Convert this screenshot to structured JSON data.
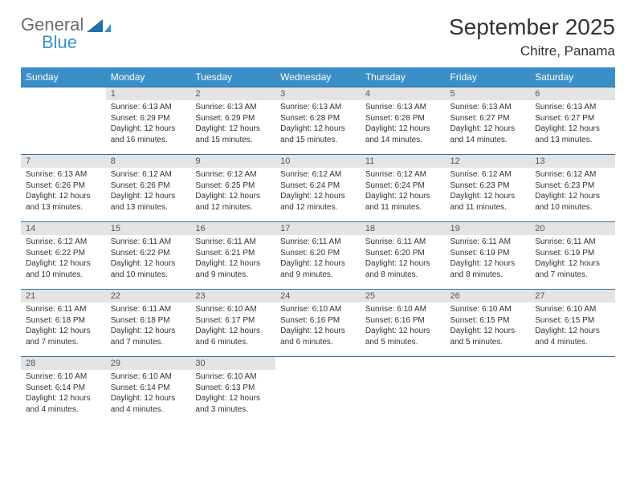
{
  "brand": {
    "word1": "General",
    "word2": "Blue"
  },
  "title": "September 2025",
  "location": "Chitre, Panama",
  "colors": {
    "header_bg": "#3b8fc9",
    "header_text": "#ffffff",
    "daynum_bg": "#e4e4e4",
    "row_border": "#2a6fa0",
    "logo_gray": "#6a6a6a",
    "logo_blue": "#3b8fc9"
  },
  "weekdays": [
    "Sunday",
    "Monday",
    "Tuesday",
    "Wednesday",
    "Thursday",
    "Friday",
    "Saturday"
  ],
  "start_offset": 1,
  "days": [
    {
      "n": "1",
      "sr": "Sunrise: 6:13 AM",
      "ss": "Sunset: 6:29 PM",
      "d1": "Daylight: 12 hours",
      "d2": "and 16 minutes."
    },
    {
      "n": "2",
      "sr": "Sunrise: 6:13 AM",
      "ss": "Sunset: 6:29 PM",
      "d1": "Daylight: 12 hours",
      "d2": "and 15 minutes."
    },
    {
      "n": "3",
      "sr": "Sunrise: 6:13 AM",
      "ss": "Sunset: 6:28 PM",
      "d1": "Daylight: 12 hours",
      "d2": "and 15 minutes."
    },
    {
      "n": "4",
      "sr": "Sunrise: 6:13 AM",
      "ss": "Sunset: 6:28 PM",
      "d1": "Daylight: 12 hours",
      "d2": "and 14 minutes."
    },
    {
      "n": "5",
      "sr": "Sunrise: 6:13 AM",
      "ss": "Sunset: 6:27 PM",
      "d1": "Daylight: 12 hours",
      "d2": "and 14 minutes."
    },
    {
      "n": "6",
      "sr": "Sunrise: 6:13 AM",
      "ss": "Sunset: 6:27 PM",
      "d1": "Daylight: 12 hours",
      "d2": "and 13 minutes."
    },
    {
      "n": "7",
      "sr": "Sunrise: 6:13 AM",
      "ss": "Sunset: 6:26 PM",
      "d1": "Daylight: 12 hours",
      "d2": "and 13 minutes."
    },
    {
      "n": "8",
      "sr": "Sunrise: 6:12 AM",
      "ss": "Sunset: 6:26 PM",
      "d1": "Daylight: 12 hours",
      "d2": "and 13 minutes."
    },
    {
      "n": "9",
      "sr": "Sunrise: 6:12 AM",
      "ss": "Sunset: 6:25 PM",
      "d1": "Daylight: 12 hours",
      "d2": "and 12 minutes."
    },
    {
      "n": "10",
      "sr": "Sunrise: 6:12 AM",
      "ss": "Sunset: 6:24 PM",
      "d1": "Daylight: 12 hours",
      "d2": "and 12 minutes."
    },
    {
      "n": "11",
      "sr": "Sunrise: 6:12 AM",
      "ss": "Sunset: 6:24 PM",
      "d1": "Daylight: 12 hours",
      "d2": "and 11 minutes."
    },
    {
      "n": "12",
      "sr": "Sunrise: 6:12 AM",
      "ss": "Sunset: 6:23 PM",
      "d1": "Daylight: 12 hours",
      "d2": "and 11 minutes."
    },
    {
      "n": "13",
      "sr": "Sunrise: 6:12 AM",
      "ss": "Sunset: 6:23 PM",
      "d1": "Daylight: 12 hours",
      "d2": "and 10 minutes."
    },
    {
      "n": "14",
      "sr": "Sunrise: 6:12 AM",
      "ss": "Sunset: 6:22 PM",
      "d1": "Daylight: 12 hours",
      "d2": "and 10 minutes."
    },
    {
      "n": "15",
      "sr": "Sunrise: 6:11 AM",
      "ss": "Sunset: 6:22 PM",
      "d1": "Daylight: 12 hours",
      "d2": "and 10 minutes."
    },
    {
      "n": "16",
      "sr": "Sunrise: 6:11 AM",
      "ss": "Sunset: 6:21 PM",
      "d1": "Daylight: 12 hours",
      "d2": "and 9 minutes."
    },
    {
      "n": "17",
      "sr": "Sunrise: 6:11 AM",
      "ss": "Sunset: 6:20 PM",
      "d1": "Daylight: 12 hours",
      "d2": "and 9 minutes."
    },
    {
      "n": "18",
      "sr": "Sunrise: 6:11 AM",
      "ss": "Sunset: 6:20 PM",
      "d1": "Daylight: 12 hours",
      "d2": "and 8 minutes."
    },
    {
      "n": "19",
      "sr": "Sunrise: 6:11 AM",
      "ss": "Sunset: 6:19 PM",
      "d1": "Daylight: 12 hours",
      "d2": "and 8 minutes."
    },
    {
      "n": "20",
      "sr": "Sunrise: 6:11 AM",
      "ss": "Sunset: 6:19 PM",
      "d1": "Daylight: 12 hours",
      "d2": "and 7 minutes."
    },
    {
      "n": "21",
      "sr": "Sunrise: 6:11 AM",
      "ss": "Sunset: 6:18 PM",
      "d1": "Daylight: 12 hours",
      "d2": "and 7 minutes."
    },
    {
      "n": "22",
      "sr": "Sunrise: 6:11 AM",
      "ss": "Sunset: 6:18 PM",
      "d1": "Daylight: 12 hours",
      "d2": "and 7 minutes."
    },
    {
      "n": "23",
      "sr": "Sunrise: 6:10 AM",
      "ss": "Sunset: 6:17 PM",
      "d1": "Daylight: 12 hours",
      "d2": "and 6 minutes."
    },
    {
      "n": "24",
      "sr": "Sunrise: 6:10 AM",
      "ss": "Sunset: 6:16 PM",
      "d1": "Daylight: 12 hours",
      "d2": "and 6 minutes."
    },
    {
      "n": "25",
      "sr": "Sunrise: 6:10 AM",
      "ss": "Sunset: 6:16 PM",
      "d1": "Daylight: 12 hours",
      "d2": "and 5 minutes."
    },
    {
      "n": "26",
      "sr": "Sunrise: 6:10 AM",
      "ss": "Sunset: 6:15 PM",
      "d1": "Daylight: 12 hours",
      "d2": "and 5 minutes."
    },
    {
      "n": "27",
      "sr": "Sunrise: 6:10 AM",
      "ss": "Sunset: 6:15 PM",
      "d1": "Daylight: 12 hours",
      "d2": "and 4 minutes."
    },
    {
      "n": "28",
      "sr": "Sunrise: 6:10 AM",
      "ss": "Sunset: 6:14 PM",
      "d1": "Daylight: 12 hours",
      "d2": "and 4 minutes."
    },
    {
      "n": "29",
      "sr": "Sunrise: 6:10 AM",
      "ss": "Sunset: 6:14 PM",
      "d1": "Daylight: 12 hours",
      "d2": "and 4 minutes."
    },
    {
      "n": "30",
      "sr": "Sunrise: 6:10 AM",
      "ss": "Sunset: 6:13 PM",
      "d1": "Daylight: 12 hours",
      "d2": "and 3 minutes."
    }
  ]
}
